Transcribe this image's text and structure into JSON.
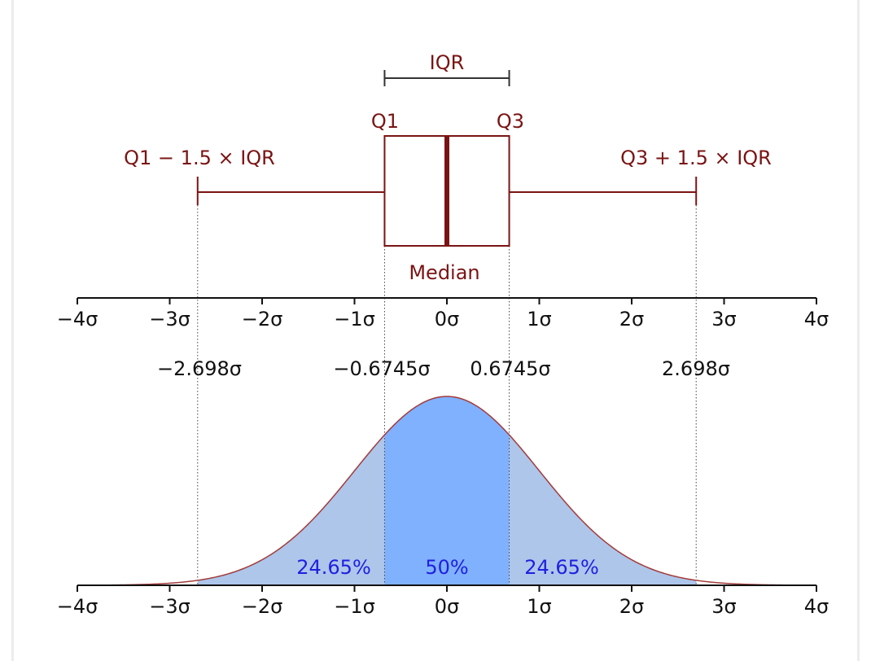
{
  "box_plot": {
    "iqr_label": "IQR",
    "q1_label": "Q1",
    "q3_label": "Q3",
    "lower_fence_label": "Q1 − 1.5 × IQR",
    "upper_fence_label": "Q3 + 1.5 × IQR",
    "median_label": "Median",
    "q1_value": -0.6745,
    "q3_value": 0.6745,
    "median_value": 0,
    "lower_whisker": -2.698,
    "upper_whisker": 2.698
  },
  "top_axis": {
    "ticks": [
      -4,
      -3,
      -2,
      -1,
      0,
      1,
      2,
      3,
      4
    ],
    "tick_labels": [
      "−4σ",
      "−3σ",
      "−2σ",
      "−1σ",
      "0σ",
      "1σ",
      "2σ",
      "3σ",
      "4σ"
    ]
  },
  "boundary_labels": [
    "−2.698σ",
    "−0.6745σ",
    "0.6745σ",
    "2.698σ"
  ],
  "distribution": {
    "type": "normal",
    "mean": 0,
    "sd": 1,
    "regions": [
      {
        "from": -2.698,
        "to": -0.6745,
        "label": "24.65%"
      },
      {
        "from": -0.6745,
        "to": 0.6745,
        "label": "50%"
      },
      {
        "from": 0.6745,
        "to": 2.698,
        "label": "24.65%"
      }
    ]
  },
  "bottom_axis": {
    "ticks": [
      -4,
      -3,
      -2,
      -1,
      0,
      1,
      2,
      3,
      4
    ],
    "tick_labels": [
      "−4σ",
      "−3σ",
      "−2σ",
      "−1σ",
      "0σ",
      "1σ",
      "2σ",
      "3σ",
      "4σ"
    ]
  },
  "colors": {
    "maroon": "#7a1414",
    "iqr_bracket": "#333333",
    "center_fill": "#80b1ff",
    "tail_fill": "#adc6ea",
    "curve": "#a33b3b",
    "percent_text": "#1f1fe0"
  }
}
